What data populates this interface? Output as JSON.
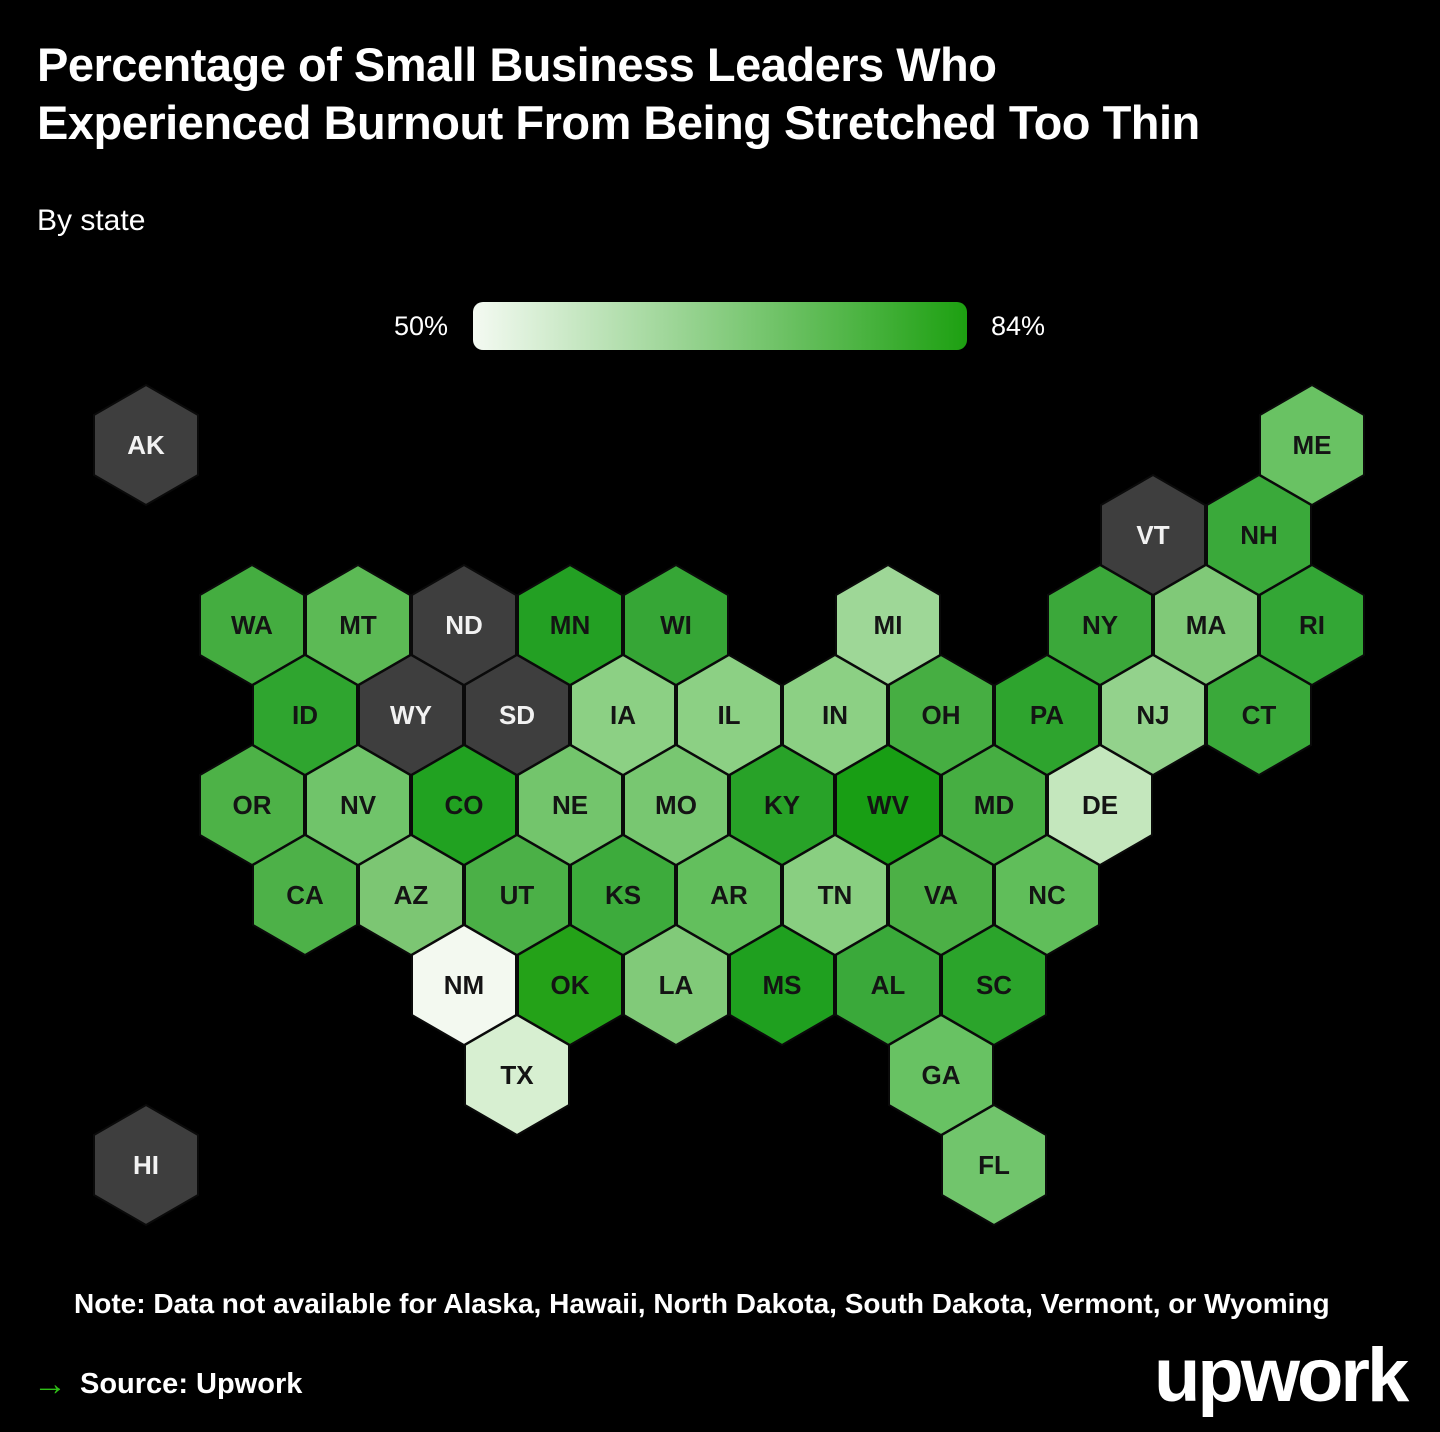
{
  "title_lines": [
    "Percentage of Small Business Leaders Who",
    "Experienced Burnout From Being Stretched Too Thin"
  ],
  "subtitle": "By state",
  "legend": {
    "min_label": "50%",
    "max_label": "84%",
    "gradient_start": "#f4faf2",
    "gradient_end": "#1da011"
  },
  "note": "Note: Data not available for Alaska, Hawaii, North Dakota, South Dakota, Vermont, or Wyoming",
  "source": {
    "arrow_glyph": "→",
    "arrow_color": "#2fbe17",
    "label": "Source: Upwork"
  },
  "logo_text": "upwork",
  "colors": {
    "background": "#000000",
    "no_data_fill": "#3e3e3e",
    "hex_border": "#0a0a0a",
    "label_dark": "#141414",
    "label_light": "#f2f2f2",
    "text": "#ffffff"
  },
  "chart_data": {
    "type": "heatmap",
    "variant": "us-state-hex-cartogram",
    "title": "Percentage of Small Business Leaders Who Experienced Burnout From Being Stretched Too Thin",
    "subtitle": "By state",
    "unit": "%",
    "color_domain": [
      50,
      84
    ],
    "legend_range": [
      "50%",
      "84%"
    ],
    "no_data_states": [
      "AK",
      "HI",
      "ND",
      "SD",
      "VT",
      "WY"
    ],
    "states": [
      {
        "abbr": "AK",
        "row": 0,
        "col": 0,
        "value": null,
        "color": null
      },
      {
        "abbr": "ME",
        "row": 0,
        "col": 11,
        "value": 66,
        "color": "#69c263"
      },
      {
        "abbr": "VT",
        "row": 1,
        "col": 9,
        "value": null,
        "color": null
      },
      {
        "abbr": "NH",
        "row": 1,
        "col": 10,
        "value": 73,
        "color": "#3aa93a"
      },
      {
        "abbr": "WA",
        "row": 2,
        "col": 1,
        "value": 71,
        "color": "#44ad40"
      },
      {
        "abbr": "MT",
        "row": 2,
        "col": 2,
        "value": 68,
        "color": "#5cba55"
      },
      {
        "abbr": "ND",
        "row": 2,
        "col": 3,
        "value": null,
        "color": null
      },
      {
        "abbr": "MN",
        "row": 2,
        "col": 4,
        "value": 79,
        "color": "#23a023"
      },
      {
        "abbr": "WI",
        "row": 2,
        "col": 5,
        "value": 74,
        "color": "#36a636"
      },
      {
        "abbr": "MI",
        "row": 2,
        "col": 7,
        "value": 60,
        "color": "#9ed797"
      },
      {
        "abbr": "NY",
        "row": 2,
        "col": 9,
        "value": 73,
        "color": "#3ba83a"
      },
      {
        "abbr": "MA",
        "row": 2,
        "col": 10,
        "value": 63,
        "color": "#80c978"
      },
      {
        "abbr": "RI",
        "row": 2,
        "col": 11,
        "value": 74,
        "color": "#33a635"
      },
      {
        "abbr": "ID",
        "row": 3,
        "col": 1,
        "value": 75,
        "color": "#2fa52f"
      },
      {
        "abbr": "WY",
        "row": 3,
        "col": 2,
        "value": null,
        "color": null
      },
      {
        "abbr": "SD",
        "row": 3,
        "col": 3,
        "value": null,
        "color": null
      },
      {
        "abbr": "IA",
        "row": 3,
        "col": 4,
        "value": 62,
        "color": "#8cd084"
      },
      {
        "abbr": "IL",
        "row": 3,
        "col": 5,
        "value": 62,
        "color": "#8cd084"
      },
      {
        "abbr": "IN",
        "row": 3,
        "col": 6,
        "value": 62,
        "color": "#8cd084"
      },
      {
        "abbr": "OH",
        "row": 3,
        "col": 7,
        "value": 71,
        "color": "#46ae42"
      },
      {
        "abbr": "PA",
        "row": 3,
        "col": 8,
        "value": 75,
        "color": "#2ea42e"
      },
      {
        "abbr": "NJ",
        "row": 3,
        "col": 9,
        "value": 61,
        "color": "#93d28c"
      },
      {
        "abbr": "CT",
        "row": 3,
        "col": 10,
        "value": 73,
        "color": "#3aa93a"
      },
      {
        "abbr": "OR",
        "row": 4,
        "col": 1,
        "value": 70,
        "color": "#4db247"
      },
      {
        "abbr": "NV",
        "row": 4,
        "col": 2,
        "value": 65,
        "color": "#70c46a"
      },
      {
        "abbr": "CO",
        "row": 4,
        "col": 3,
        "value": 80,
        "color": "#21a221"
      },
      {
        "abbr": "NE",
        "row": 4,
        "col": 4,
        "value": 65,
        "color": "#73c56c"
      },
      {
        "abbr": "MO",
        "row": 4,
        "col": 5,
        "value": 64,
        "color": "#78c771"
      },
      {
        "abbr": "KY",
        "row": 4,
        "col": 6,
        "value": 77,
        "color": "#28a228"
      },
      {
        "abbr": "WV",
        "row": 4,
        "col": 7,
        "value": 84,
        "color": "#189e14"
      },
      {
        "abbr": "MD",
        "row": 4,
        "col": 8,
        "value": 71,
        "color": "#46ae42"
      },
      {
        "abbr": "DE",
        "row": 4,
        "col": 9,
        "value": 55,
        "color": "#c4e7bd"
      },
      {
        "abbr": "CA",
        "row": 5,
        "col": 1,
        "value": 70,
        "color": "#4db148"
      },
      {
        "abbr": "AZ",
        "row": 5,
        "col": 2,
        "value": 64,
        "color": "#7cc673"
      },
      {
        "abbr": "UT",
        "row": 5,
        "col": 3,
        "value": 70,
        "color": "#4bb047"
      },
      {
        "abbr": "KS",
        "row": 5,
        "col": 4,
        "value": 72,
        "color": "#3dab3c"
      },
      {
        "abbr": "AR",
        "row": 5,
        "col": 5,
        "value": 67,
        "color": "#63bf5d"
      },
      {
        "abbr": "TN",
        "row": 5,
        "col": 6,
        "value": 62,
        "color": "#89cf81"
      },
      {
        "abbr": "VA",
        "row": 5,
        "col": 7,
        "value": 70,
        "color": "#4cb046"
      },
      {
        "abbr": "NC",
        "row": 5,
        "col": 8,
        "value": 67,
        "color": "#60be5a"
      },
      {
        "abbr": "NM",
        "row": 6,
        "col": 3,
        "value": 50,
        "color": "#f3f9f0"
      },
      {
        "abbr": "OK",
        "row": 6,
        "col": 4,
        "value": 81,
        "color": "#24a218"
      },
      {
        "abbr": "LA",
        "row": 6,
        "col": 5,
        "value": 63,
        "color": "#81ca79"
      },
      {
        "abbr": "MS",
        "row": 6,
        "col": 6,
        "value": 81,
        "color": "#1fa01f"
      },
      {
        "abbr": "AL",
        "row": 6,
        "col": 7,
        "value": 73,
        "color": "#3aa93a"
      },
      {
        "abbr": "SC",
        "row": 6,
        "col": 8,
        "value": 76,
        "color": "#2ba42b"
      },
      {
        "abbr": "TX",
        "row": 7,
        "col": 3,
        "value": 53,
        "color": "#d7efd1"
      },
      {
        "abbr": "GA",
        "row": 7,
        "col": 7,
        "value": 66,
        "color": "#68c263"
      },
      {
        "abbr": "HI",
        "row": 8,
        "col": 0,
        "value": null,
        "color": null
      },
      {
        "abbr": "FL",
        "row": 8,
        "col": 8,
        "value": 65,
        "color": "#71c56c"
      }
    ]
  }
}
